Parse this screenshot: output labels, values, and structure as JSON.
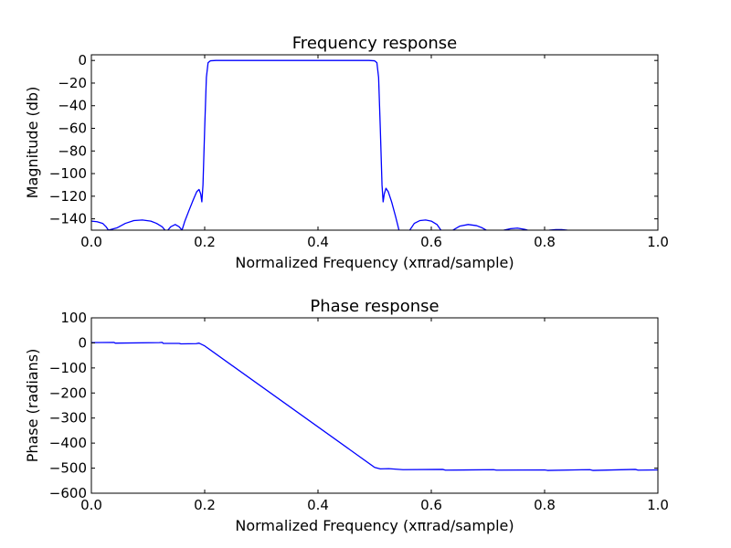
{
  "colors": {
    "series": "#0000ff",
    "axes": "#000000",
    "background": "#ffffff"
  },
  "chart_data": [
    {
      "type": "line",
      "title": "Frequency response",
      "xlabel": "Normalized Frequency (xπrad/sample)",
      "ylabel": "Magnitude (db)",
      "xlim": [
        0.0,
        1.0
      ],
      "ylim": [
        -150,
        5
      ],
      "xticks": [
        0.0,
        0.2,
        0.4,
        0.6,
        0.8,
        1.0
      ],
      "xtick_labels": [
        "0.0",
        "0.2",
        "0.4",
        "0.6",
        "0.8",
        "1.0"
      ],
      "yticks": [
        0,
        -20,
        -40,
        -60,
        -80,
        -100,
        -120,
        -140
      ],
      "ytick_labels": [
        "0",
        "−20",
        "−40",
        "−60",
        "−80",
        "−100",
        "−120",
        "−140"
      ],
      "grid": false,
      "series": [
        {
          "color": "#0000ff",
          "segments": [
            [
              [
                0.0,
                -142
              ],
              [
                0.01,
                -142.5
              ],
              [
                0.02,
                -144
              ],
              [
                0.026,
                -147
              ],
              [
                0.03,
                -150
              ]
            ],
            [
              [
                0.03,
                -150
              ],
              [
                0.045,
                -148
              ],
              [
                0.06,
                -144
              ],
              [
                0.075,
                -141.5
              ],
              [
                0.09,
                -141
              ],
              [
                0.105,
                -142
              ],
              [
                0.115,
                -144
              ],
              [
                0.125,
                -147
              ],
              [
                0.13,
                -150
              ]
            ],
            [
              [
                0.135,
                -150
              ],
              [
                0.14,
                -147
              ],
              [
                0.148,
                -145
              ],
              [
                0.155,
                -147
              ],
              [
                0.16,
                -150
              ]
            ],
            [
              [
                0.16,
                -150
              ],
              [
                0.165,
                -142
              ],
              [
                0.172,
                -133
              ],
              [
                0.18,
                -123
              ],
              [
                0.186,
                -116
              ],
              [
                0.19,
                -114
              ],
              [
                0.193,
                -118
              ],
              [
                0.195,
                -125
              ],
              [
                0.197,
                -110
              ],
              [
                0.2,
                -60
              ],
              [
                0.203,
                -15
              ],
              [
                0.206,
                -2
              ],
              [
                0.21,
                -0.3
              ],
              [
                0.22,
                0
              ],
              [
                0.3,
                0
              ],
              [
                0.4,
                0
              ],
              [
                0.49,
                0
              ],
              [
                0.5,
                -0.3
              ],
              [
                0.504,
                -2
              ],
              [
                0.507,
                -15
              ],
              [
                0.51,
                -60
              ],
              [
                0.513,
                -110
              ],
              [
                0.515,
                -125
              ],
              [
                0.517,
                -118
              ],
              [
                0.52,
                -113
              ],
              [
                0.524,
                -116
              ],
              [
                0.53,
                -125
              ],
              [
                0.537,
                -138
              ],
              [
                0.543,
                -150
              ]
            ],
            [
              [
                0.562,
                -150
              ],
              [
                0.57,
                -144
              ],
              [
                0.58,
                -141.5
              ],
              [
                0.59,
                -141
              ],
              [
                0.6,
                -142
              ],
              [
                0.61,
                -145
              ],
              [
                0.617,
                -150
              ]
            ],
            [
              [
                0.638,
                -150
              ],
              [
                0.65,
                -146.5
              ],
              [
                0.665,
                -145
              ],
              [
                0.68,
                -146
              ],
              [
                0.69,
                -148
              ],
              [
                0.697,
                -150
              ]
            ],
            [
              [
                0.728,
                -150
              ],
              [
                0.74,
                -148.7
              ],
              [
                0.752,
                -148.2
              ],
              [
                0.765,
                -149.3
              ],
              [
                0.77,
                -150
              ]
            ],
            [
              [
                0.808,
                -150
              ],
              [
                0.82,
                -149.5
              ],
              [
                0.83,
                -149.5
              ],
              [
                0.84,
                -150
              ]
            ]
          ]
        }
      ]
    },
    {
      "type": "line",
      "title": "Phase response",
      "xlabel": "Normalized Frequency (xπrad/sample)",
      "ylabel": "Phase (radians)",
      "xlim": [
        0.0,
        1.0
      ],
      "ylim": [
        -600,
        100
      ],
      "xticks": [
        0.0,
        0.2,
        0.4,
        0.6,
        0.8,
        1.0
      ],
      "xtick_labels": [
        "0.0",
        "0.2",
        "0.4",
        "0.6",
        "0.8",
        "1.0"
      ],
      "yticks": [
        100,
        0,
        -100,
        -200,
        -300,
        -400,
        -500,
        -600
      ],
      "ytick_labels": [
        "100",
        "0",
        "−100",
        "−200",
        "−300",
        "−400",
        "−500",
        "−600"
      ],
      "grid": false,
      "series": [
        {
          "color": "#0000ff",
          "segments": [
            [
              [
                0.0,
                1
              ],
              [
                0.04,
                2
              ],
              [
                0.042,
                -1
              ],
              [
                0.12,
                1
              ],
              [
                0.125,
                2
              ],
              [
                0.127,
                -2
              ],
              [
                0.155,
                -2
              ],
              [
                0.158,
                -4
              ],
              [
                0.185,
                -3
              ],
              [
                0.19,
                -1
              ],
              [
                0.2,
                -12
              ],
              [
                0.5,
                -497
              ],
              [
                0.51,
                -503
              ],
              [
                0.525,
                -502
              ],
              [
                0.55,
                -506
              ],
              [
                0.62,
                -505
              ],
              [
                0.625,
                -508
              ],
              [
                0.71,
                -506
              ],
              [
                0.715,
                -508
              ],
              [
                0.8,
                -507
              ],
              [
                0.805,
                -509
              ],
              [
                0.88,
                -506
              ],
              [
                0.885,
                -509
              ],
              [
                0.96,
                -505
              ],
              [
                0.965,
                -508
              ],
              [
                1.0,
                -507
              ]
            ]
          ]
        }
      ]
    }
  ]
}
